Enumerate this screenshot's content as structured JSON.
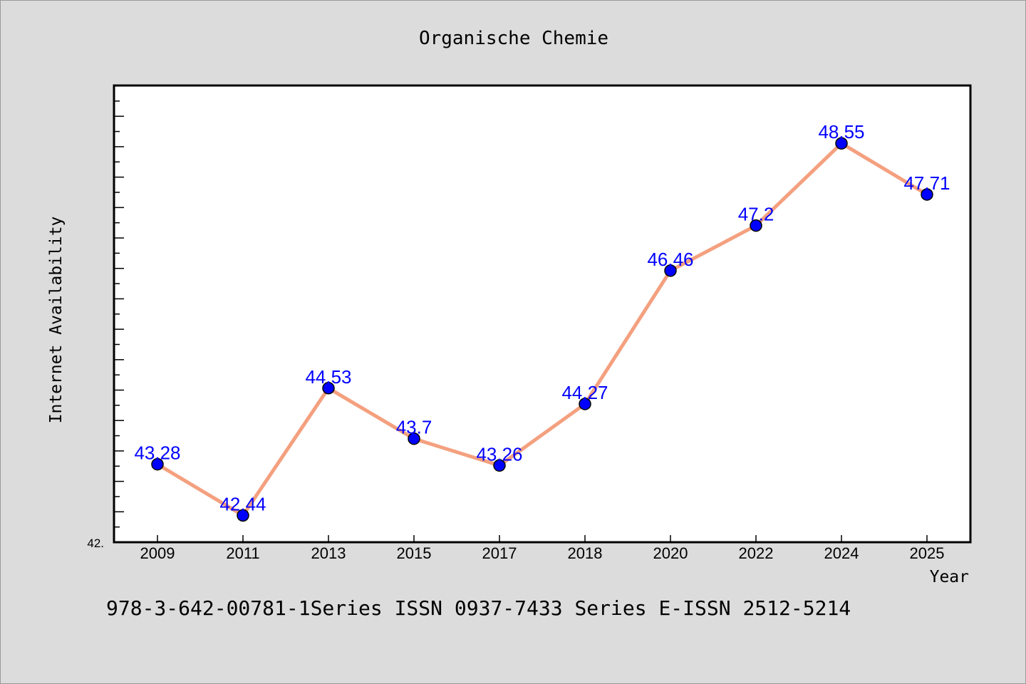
{
  "chart_data": {
    "type": "line",
    "title": "Organische Chemie",
    "xlabel": "Year",
    "ylabel": "Internet Availability",
    "categories": [
      "2009",
      "2011",
      "2013",
      "2015",
      "2017",
      "2018",
      "2020",
      "2022",
      "2024",
      "2025"
    ],
    "series": [
      {
        "values": [
          43.28,
          42.44,
          44.53,
          43.7,
          43.26,
          44.27,
          46.46,
          47.2,
          48.55,
          47.71
        ]
      }
    ],
    "ylim": [
      42.0,
      49.5
    ],
    "y_tick_label": "42.",
    "grid": false,
    "colors": {
      "line": "#f4a07f",
      "marker": "#0000ff",
      "label": "#0000ff",
      "background": "#dcdcdc",
      "plot_background": "#ffffff"
    }
  },
  "footer": {
    "text": "978-3-642-00781-1Series ISSN 0937-7433 Series E-ISSN 2512-5214"
  }
}
